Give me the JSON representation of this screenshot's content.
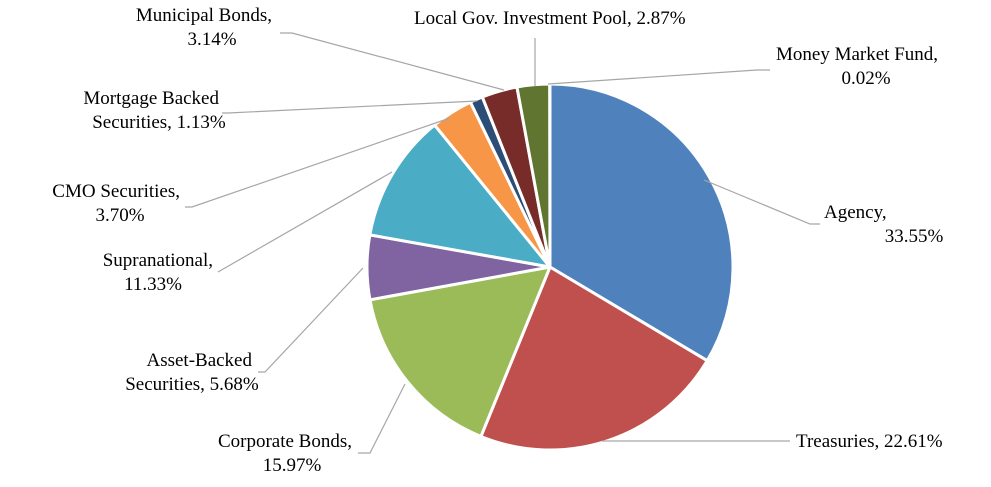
{
  "chart_data": {
    "type": "pie",
    "title": "",
    "start_angle_deg": 0,
    "direction": "clockwise",
    "slices": [
      {
        "label": "Agency, 33.55%",
        "name": "Agency",
        "value": 33.55,
        "color": "#4f81bd"
      },
      {
        "label": "Treasuries, 22.61%",
        "name": "Treasuries",
        "value": 22.61,
        "color": "#c0504d"
      },
      {
        "label": "Corporate Bonds, 15.97%",
        "name": "Corporate Bonds",
        "value": 15.97,
        "color": "#9bbb59"
      },
      {
        "label": "Asset-Backed Securities, 5.68%",
        "name": "Asset-Backed Securities",
        "value": 5.68,
        "color": "#8064a2"
      },
      {
        "label": "Supranational, 11.33%",
        "name": "Supranational",
        "value": 11.33,
        "color": "#4bacc6"
      },
      {
        "label": "CMO Securities, 3.70%",
        "name": "CMO Securities",
        "value": 3.7,
        "color": "#f79646"
      },
      {
        "label": "Mortgage Backed Securities, 1.13%",
        "name": "Mortgage Backed Securities",
        "value": 1.13,
        "color": "#2c4d75"
      },
      {
        "label": "Municipal Bonds, 3.14%",
        "name": "Municipal Bonds",
        "value": 3.14,
        "color": "#772c2a"
      },
      {
        "label": "Local Gov. Investment Pool, 2.87%",
        "name": "Local Gov. Investment Pool",
        "value": 2.87,
        "color": "#5f7530"
      },
      {
        "label": "Money Market Fund, 0.02%",
        "name": "Money Market Fund",
        "value": 0.02,
        "color": "#4d3b62"
      }
    ]
  }
}
